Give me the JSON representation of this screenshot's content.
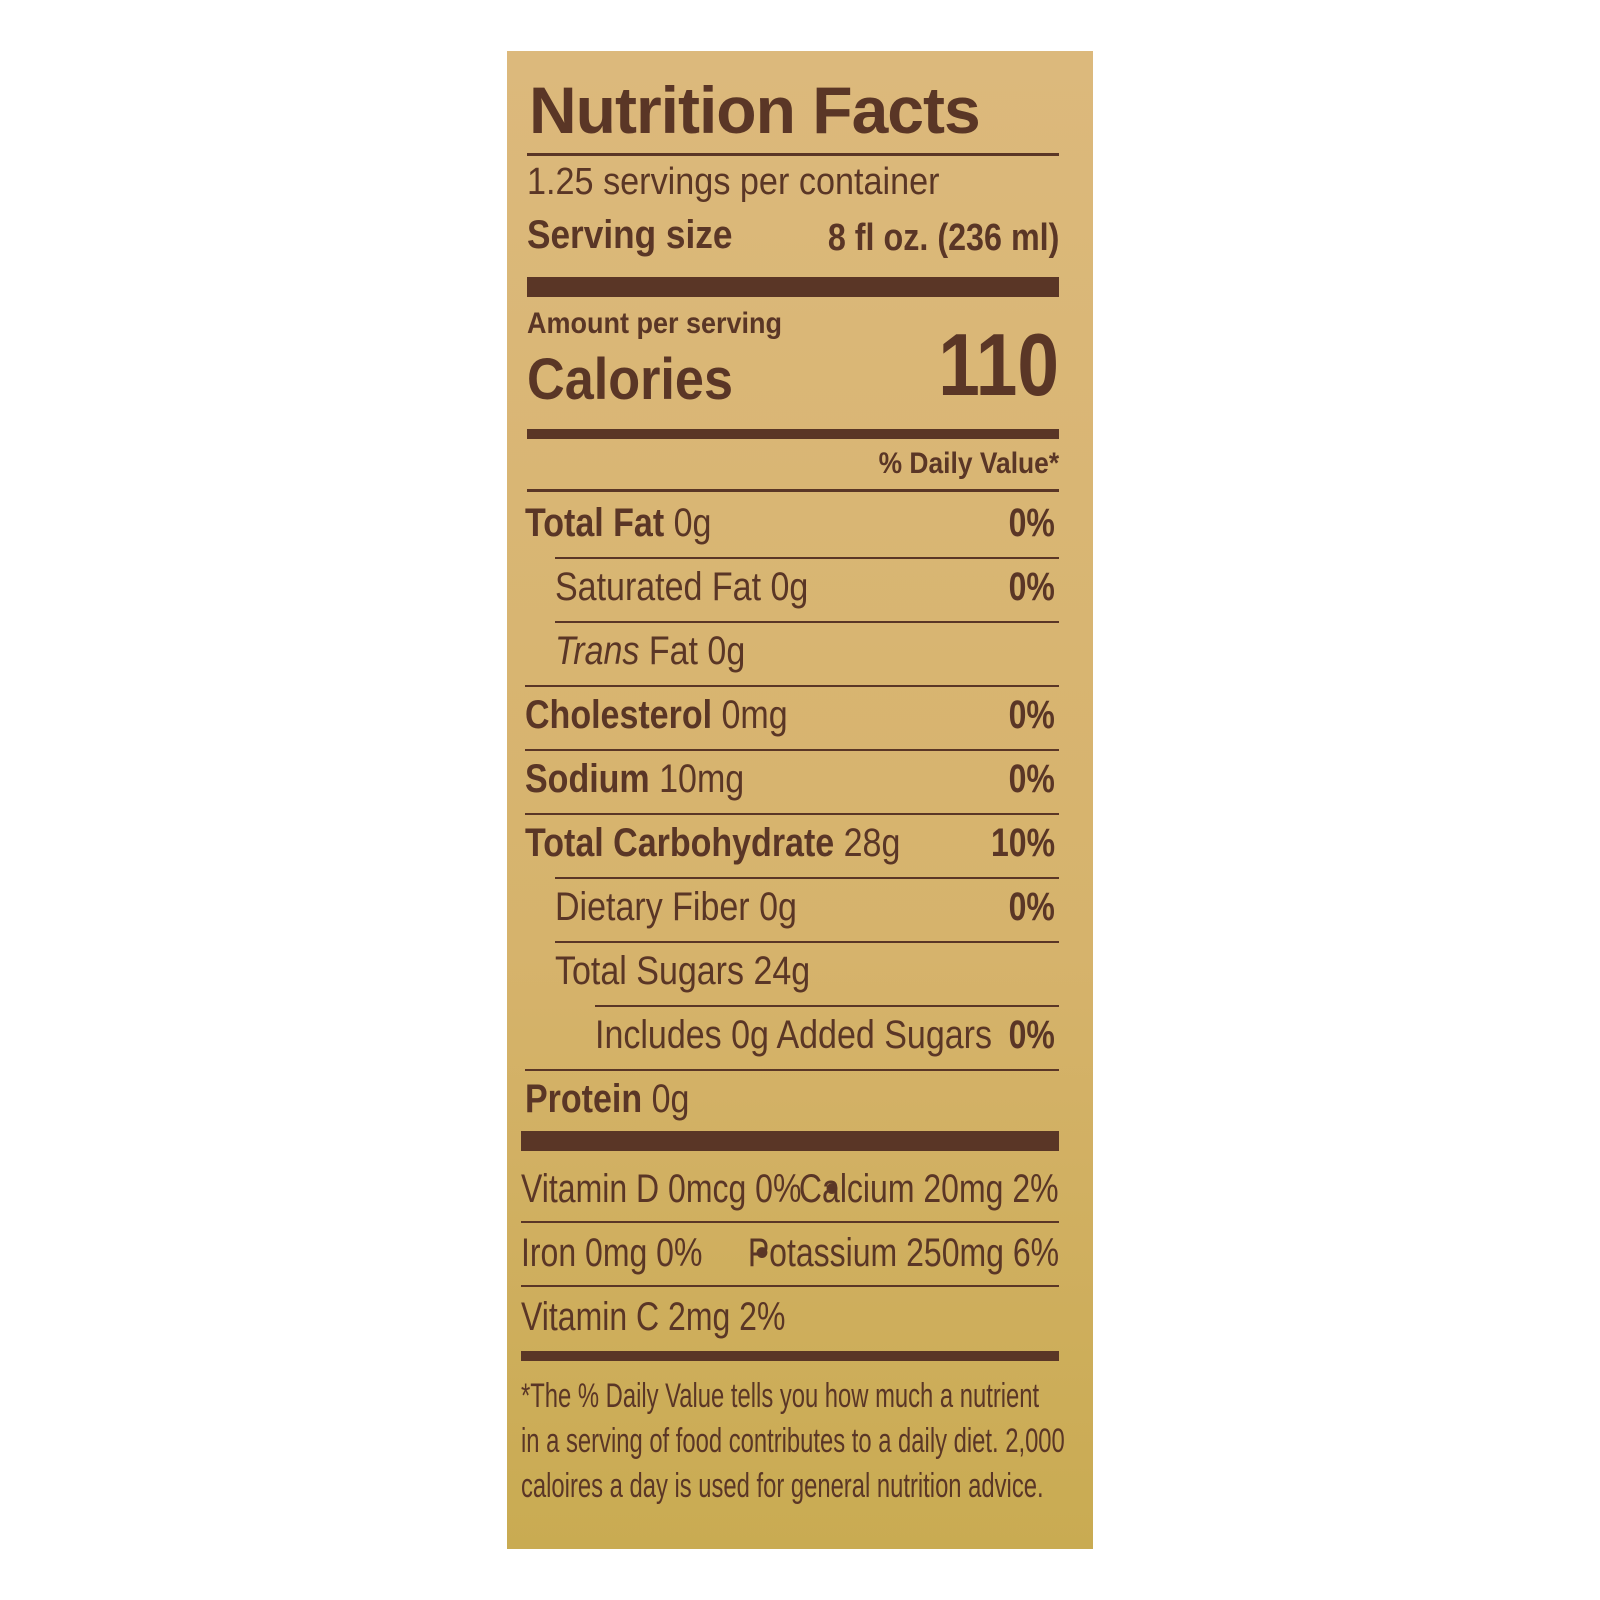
{
  "title": "Nutrition Facts",
  "servings": "1.25 servings per container",
  "serving_size": {
    "label": "Serving size",
    "value": "8 fl oz. (236 ml)"
  },
  "amount_per_serving": "Amount per serving",
  "calories": {
    "label": "Calories",
    "value": "110"
  },
  "daily_value_header": "% Daily Value*",
  "rows": [
    {
      "name": "Total Fat",
      "amount": "0g",
      "dv": "0%",
      "bold": true,
      "indent": 0
    },
    {
      "name": "Saturated Fat",
      "amount": "0g",
      "dv": "0%",
      "bold": false,
      "indent": 1
    },
    {
      "emphasis": "Trans",
      "name": "Fat",
      "amount": "0g",
      "bold": false,
      "indent": 1
    },
    {
      "name": "Cholesterol",
      "amount": "0mg",
      "dv": "0%",
      "bold": true,
      "indent": 0
    },
    {
      "name": "Sodium",
      "amount": "10mg",
      "dv": "0%",
      "bold": true,
      "indent": 0
    },
    {
      "name": "Total Carbohydrate",
      "amount": "28g",
      "dv": "10%",
      "bold": true,
      "indent": 0
    },
    {
      "name": "Dietary Fiber",
      "amount": "0g",
      "dv": "0%",
      "bold": false,
      "indent": 1
    },
    {
      "name": "Total Sugars",
      "amount": "24g",
      "bold": false,
      "indent": 1
    },
    {
      "name": "Includes 0g Added Sugars",
      "dv": "0%",
      "bold": false,
      "indent": 2
    },
    {
      "name": "Protein",
      "amount": "0g",
      "bold": true,
      "indent": 0
    }
  ],
  "separator": "•",
  "vitamins": [
    [
      "Vitamin D 0mcg 0%",
      "Calcium 20mg 2%"
    ],
    [
      "Iron 0mg 0%",
      "Potassium 250mg 6%"
    ],
    [
      "Vitamin C 2mg 2%"
    ]
  ],
  "footnote": [
    "*The % Daily Value tells you how much a nutrient",
    "in a serving of food contributes to a daily diet. 2,000",
    "caloires a day is used for general nutrition advice."
  ]
}
